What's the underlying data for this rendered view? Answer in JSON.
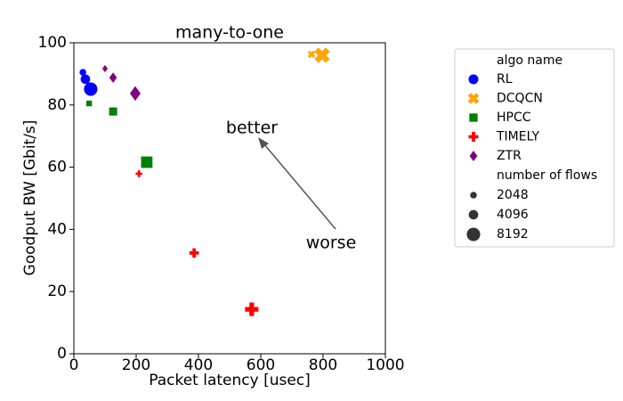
{
  "chart_data": {
    "type": "scatter",
    "title": "many-to-one",
    "x_label": "Packet latency [usec]",
    "y_label": "Goodput BW [Gbit/s]",
    "xlim": [
      0,
      1000
    ],
    "xticks": [
      0,
      200,
      400,
      600,
      800,
      1000
    ],
    "ylim": [
      0,
      100
    ],
    "yticks": [
      0,
      20,
      40,
      60,
      80,
      100
    ],
    "grid": false,
    "legend_title": "algo name",
    "series": [
      {
        "name": "RL",
        "color": "#0000ff",
        "marker": "o",
        "x": [
          29,
          37,
          54
        ],
        "y": [
          90.5,
          88.3,
          85.1
        ],
        "flows": [
          2048,
          4096,
          8192
        ]
      },
      {
        "name": "DCQCN",
        "color": "#ffa500",
        "marker": "X",
        "x": [
          763,
          797
        ],
        "y": [
          96.3,
          96
        ],
        "flows": [
          2048,
          8192
        ]
      },
      {
        "name": "HPCC",
        "color": "#008000",
        "marker": "s",
        "x": [
          49,
          126,
          234
        ],
        "y": [
          80.5,
          77.9,
          61.6
        ],
        "flows": [
          2048,
          4096,
          8192
        ]
      },
      {
        "name": "TIMELY",
        "color": "#ff0000",
        "marker": "P",
        "x": [
          209,
          386,
          571
        ],
        "y": [
          57.9,
          32.4,
          14.3
        ],
        "flows": [
          2048,
          4096,
          8192
        ]
      },
      {
        "name": "ZTR",
        "color": "#800080",
        "marker": "D",
        "x": [
          100,
          126,
          197
        ],
        "y": [
          91.7,
          88.8,
          83.7
        ],
        "flows": [
          2048,
          4096,
          8192
        ]
      }
    ],
    "size_legend": {
      "title": "number of flows",
      "values": [
        2048,
        4096,
        8192
      ]
    },
    "annotations": [
      "better",
      "worse"
    ]
  }
}
